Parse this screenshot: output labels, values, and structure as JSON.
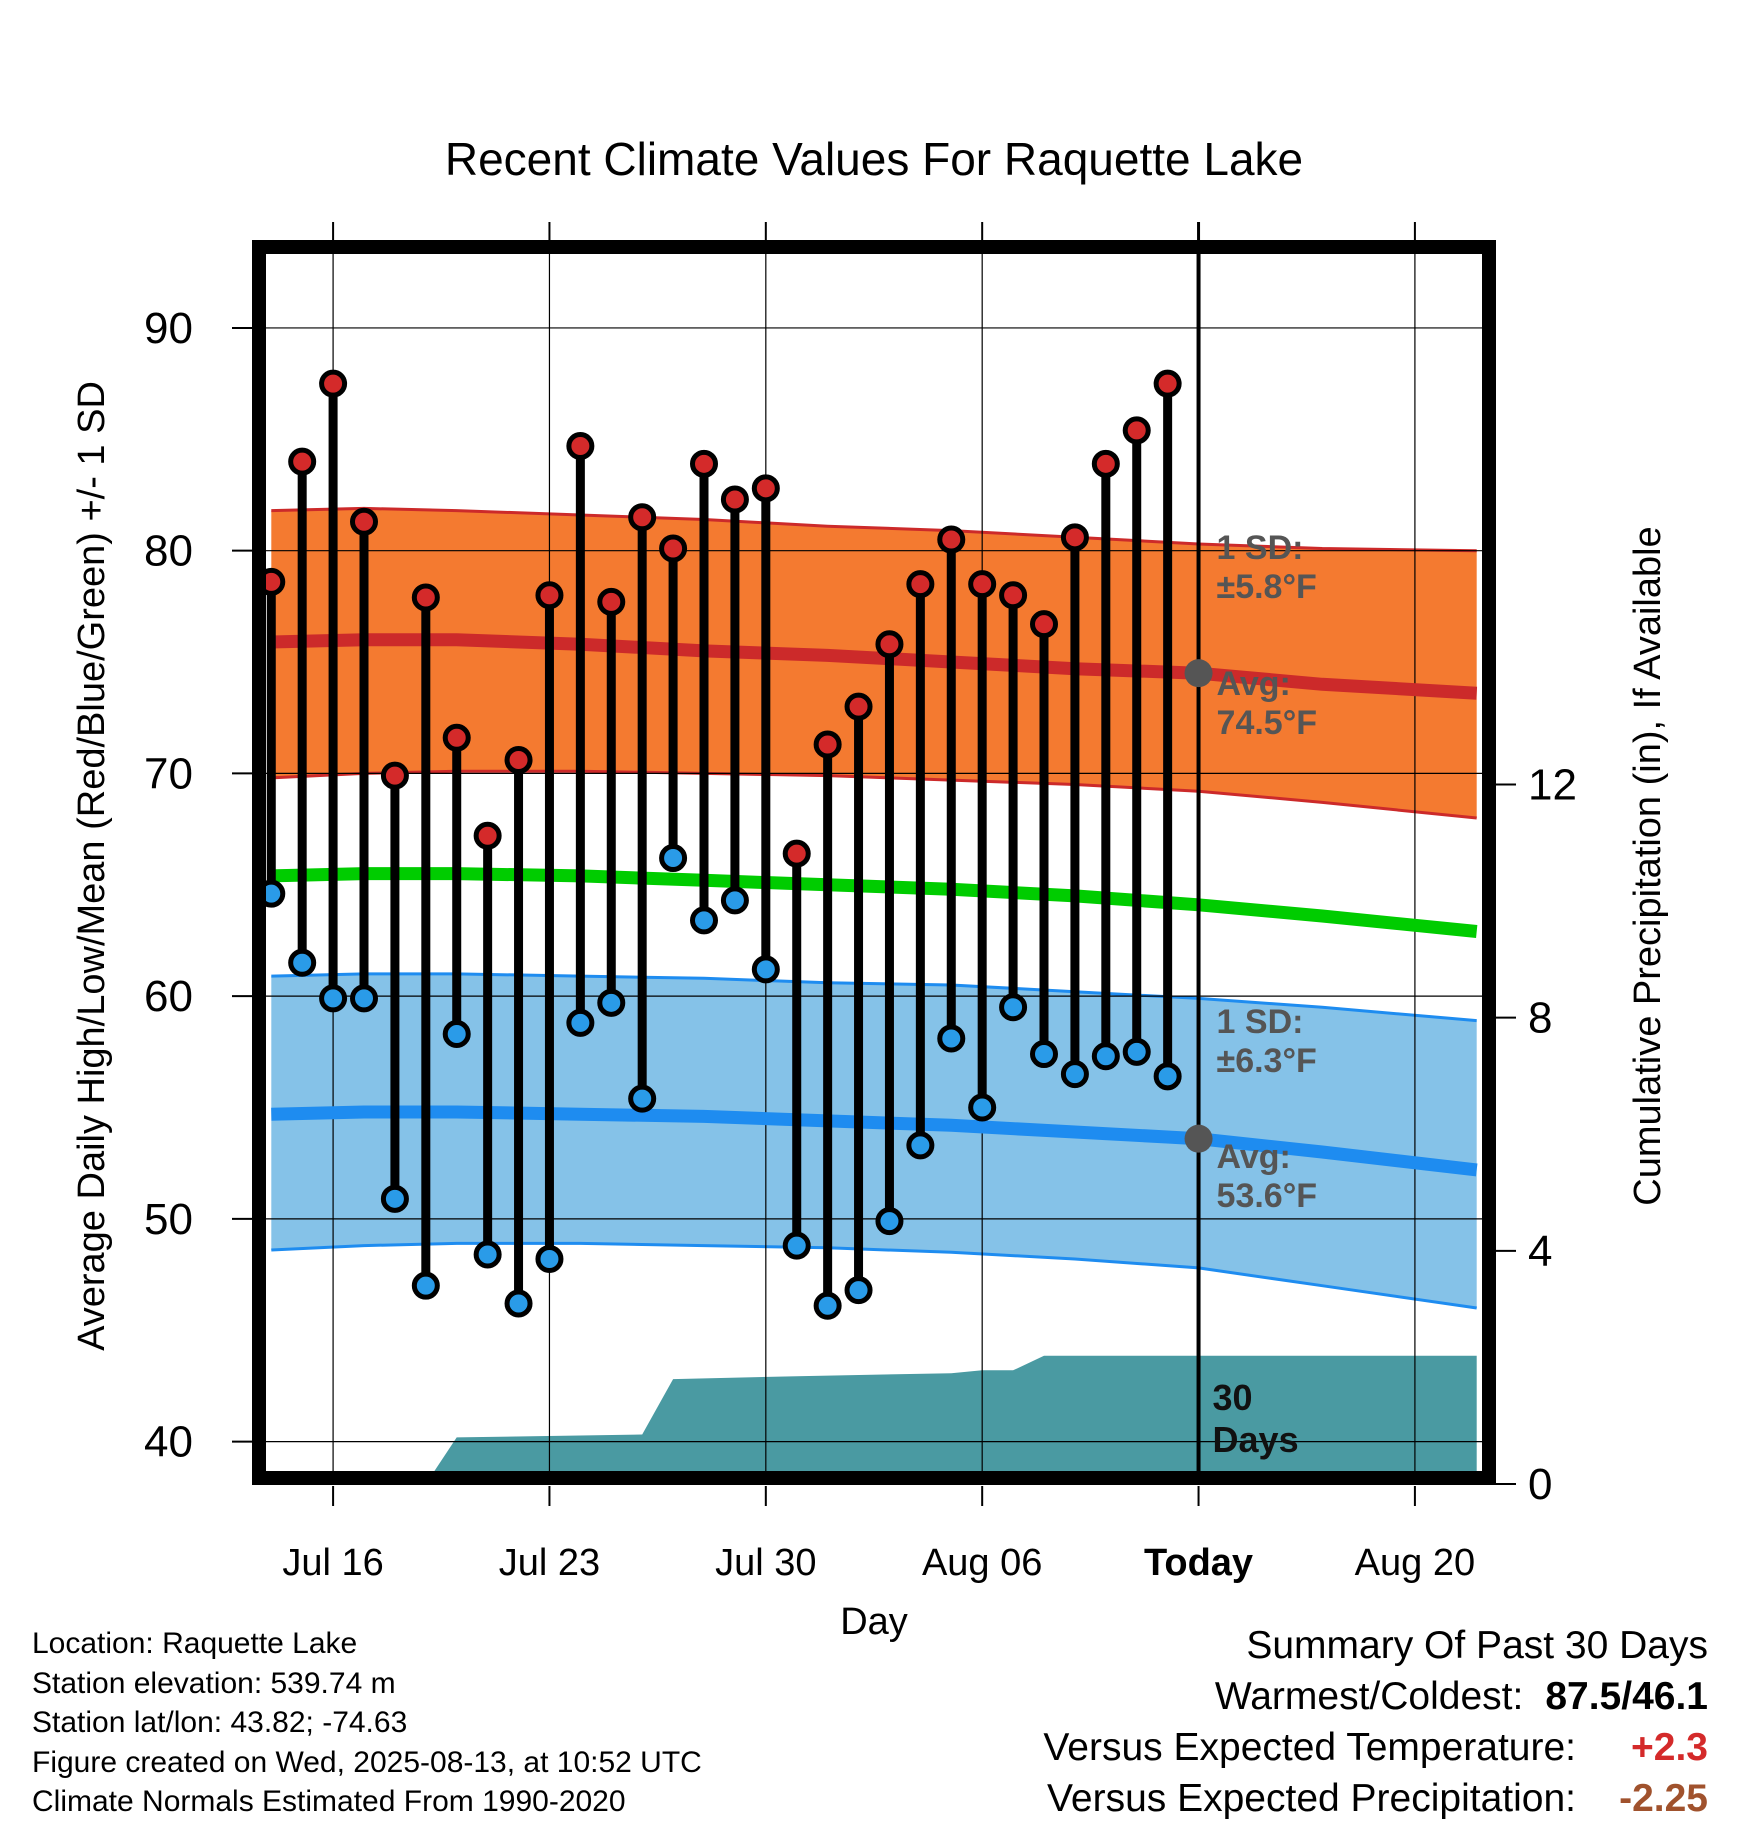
{
  "title": "Recent Climate Values For Raquette Lake",
  "chart_data": {
    "type": "line",
    "xlabel": "Day",
    "ylabel": "Average Daily High/Low/Mean (Red/Blue/Green) +/- 1 SD",
    "y2label": "Cumulative Precipitation (in), If Available",
    "ylim": [
      38.5,
      93.5
    ],
    "yticks": [
      40,
      50,
      60,
      70,
      80,
      90
    ],
    "y2lim": [
      0,
      24
    ],
    "y2ticks": [
      0,
      4,
      8,
      12
    ],
    "xticks": [
      {
        "day": 2,
        "label": "Jul 16"
      },
      {
        "day": 9,
        "label": "Jul 23"
      },
      {
        "day": 16,
        "label": "Jul 30"
      },
      {
        "day": 23,
        "label": "Aug 06"
      },
      {
        "day": 30,
        "label": "Today"
      },
      {
        "day": 37,
        "label": "Aug 20"
      }
    ],
    "xlim": [
      -0.3,
      39.3
    ],
    "days": [
      0,
      1,
      2,
      3,
      4,
      5,
      6,
      7,
      8,
      9,
      10,
      11,
      12,
      13,
      14,
      15,
      16,
      17,
      18,
      19,
      20,
      21,
      22,
      23,
      24,
      25,
      26,
      27,
      28,
      29
    ],
    "highs": [
      78.6,
      84.0,
      87.5,
      81.3,
      69.9,
      77.9,
      71.6,
      67.2,
      70.6,
      78.0,
      84.7,
      77.7,
      81.5,
      80.1,
      83.9,
      82.3,
      82.8,
      66.4,
      71.3,
      73.0,
      75.8,
      78.5,
      80.5,
      78.5,
      78.0,
      76.7,
      80.6,
      83.9,
      85.4,
      87.5
    ],
    "lows": [
      64.6,
      61.5,
      59.9,
      59.9,
      50.9,
      47.0,
      58.3,
      48.4,
      46.2,
      48.2,
      58.8,
      59.7,
      55.4,
      66.2,
      63.4,
      64.3,
      61.2,
      48.8,
      46.1,
      46.8,
      49.9,
      53.3,
      58.1,
      55.0,
      59.5,
      57.4,
      56.5,
      57.3,
      57.5,
      56.4
    ],
    "normal_high": {
      "avg": [
        [
          0,
          75.9
        ],
        [
          3,
          76.0
        ],
        [
          6,
          76.0
        ],
        [
          10,
          75.8
        ],
        [
          14,
          75.5
        ],
        [
          18,
          75.3
        ],
        [
          22,
          75.0
        ],
        [
          26,
          74.7
        ],
        [
          30,
          74.5
        ],
        [
          34,
          74.0
        ],
        [
          39,
          73.6
        ]
      ],
      "upper": [
        [
          0,
          81.8
        ],
        [
          3,
          81.9
        ],
        [
          6,
          81.8
        ],
        [
          10,
          81.6
        ],
        [
          14,
          81.4
        ],
        [
          18,
          81.1
        ],
        [
          22,
          80.9
        ],
        [
          26,
          80.6
        ],
        [
          30,
          80.3
        ],
        [
          34,
          80.1
        ],
        [
          39,
          80.0
        ]
      ],
      "lower": [
        [
          0,
          69.8
        ],
        [
          3,
          70.0
        ],
        [
          6,
          70.1
        ],
        [
          10,
          70.1
        ],
        [
          14,
          70.0
        ],
        [
          18,
          69.9
        ],
        [
          22,
          69.7
        ],
        [
          26,
          69.5
        ],
        [
          30,
          69.2
        ],
        [
          34,
          68.7
        ],
        [
          39,
          68.0
        ]
      ]
    },
    "normal_mean": [
      [
        0,
        65.4
      ],
      [
        3,
        65.5
      ],
      [
        6,
        65.5
      ],
      [
        10,
        65.4
      ],
      [
        14,
        65.2
      ],
      [
        18,
        65.0
      ],
      [
        22,
        64.8
      ],
      [
        26,
        64.5
      ],
      [
        30,
        64.1
      ],
      [
        34,
        63.6
      ],
      [
        39,
        62.9
      ]
    ],
    "normal_low": {
      "avg": [
        [
          0,
          54.7
        ],
        [
          3,
          54.8
        ],
        [
          6,
          54.8
        ],
        [
          10,
          54.7
        ],
        [
          14,
          54.6
        ],
        [
          18,
          54.4
        ],
        [
          22,
          54.2
        ],
        [
          26,
          53.9
        ],
        [
          30,
          53.6
        ],
        [
          34,
          53.0
        ],
        [
          39,
          52.2
        ]
      ],
      "upper": [
        [
          0,
          60.9
        ],
        [
          3,
          61.0
        ],
        [
          6,
          61.0
        ],
        [
          10,
          60.9
        ],
        [
          14,
          60.8
        ],
        [
          18,
          60.6
        ],
        [
          22,
          60.5
        ],
        [
          26,
          60.2
        ],
        [
          30,
          59.9
        ],
        [
          34,
          59.5
        ],
        [
          39,
          58.9
        ]
      ],
      "lower": [
        [
          0,
          48.6
        ],
        [
          3,
          48.8
        ],
        [
          6,
          48.9
        ],
        [
          10,
          48.9
        ],
        [
          14,
          48.8
        ],
        [
          18,
          48.7
        ],
        [
          22,
          48.5
        ],
        [
          26,
          48.2
        ],
        [
          30,
          47.8
        ],
        [
          34,
          47.0
        ],
        [
          39,
          46.0
        ]
      ]
    },
    "precip_cumulative": [
      [
        0,
        0
      ],
      [
        5,
        0
      ],
      [
        6,
        0.8
      ],
      [
        12,
        0.85
      ],
      [
        13,
        1.8
      ],
      [
        17,
        1.85
      ],
      [
        22,
        1.9
      ],
      [
        23,
        1.95
      ],
      [
        24,
        1.95
      ],
      [
        25,
        2.2
      ],
      [
        39,
        2.2
      ]
    ],
    "today_day": 30,
    "annotations": {
      "high_sd": "1 SD:",
      "high_sd_val": "±5.8°F",
      "high_avg": "Avg:",
      "high_avg_val": "74.5°F",
      "low_sd": "1 SD:",
      "low_sd_val": "±6.3°F",
      "low_avg": "Avg:",
      "low_avg_val": "53.6°F",
      "precip_days": "30",
      "precip_days_label": "Days"
    },
    "colors": {
      "high_band": "#f47a30",
      "high_line": "#cc2a2a",
      "high_point": "#d42a2a",
      "low_band": "#85c2e8",
      "low_line": "#1e8cf0",
      "low_point": "#2a9be8",
      "mean_line": "#00cc00",
      "precip": "#4a9aa2",
      "annotation": "#555555"
    }
  },
  "location": {
    "location": "Location: Raquette Lake",
    "elevation": "Station elevation: 539.74 m",
    "latlon": "Station lat/lon: 43.82; -74.63",
    "created": "Figure created on Wed, 2025-08-13, at 10:52 UTC",
    "normals": "Climate Normals Estimated From 1990-2020"
  },
  "summary": {
    "heading": "Summary Of Past 30 Days",
    "warm_label": "Warmest/Coldest:",
    "warm_value": "87.5/46.1",
    "temp_label": "Versus Expected Temperature:",
    "temp_value": "+2.3",
    "temp_color": "#d42a2a",
    "precip_label": "Versus Expected Precipitation:",
    "precip_value": "-2.25",
    "precip_color": "#a0522d"
  }
}
